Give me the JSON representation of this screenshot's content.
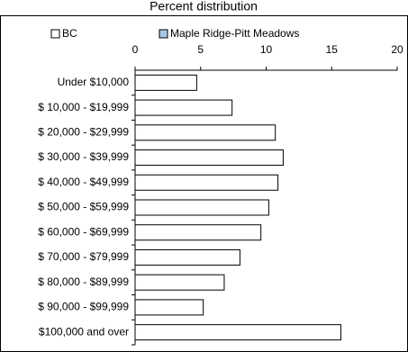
{
  "chart_data": {
    "type": "bar",
    "orientation": "horizontal",
    "title": "Percent distribution",
    "categories": [
      "Under $10,000",
      "$  10,000 - $19,999",
      "$  20,000 - $29,999",
      "$  30,000 - $39,999",
      "$  40,000 - $49,999",
      "$  50,000 - $59,999",
      "$  60,000 - $69,999",
      "$  70,000 - $79,999",
      "$  80,000 - $89,999",
      "$  90,000 - $99,999",
      "$100,000 and over"
    ],
    "series": [
      {
        "name": "BC",
        "color": "#ffffff",
        "values": [
          4.7,
          7.4,
          10.7,
          11.3,
          10.9,
          10.2,
          9.6,
          8.0,
          6.8,
          5.2,
          15.7
        ]
      },
      {
        "name": "Maple Ridge-Pitt Meadows",
        "color": "#a6c8e8",
        "values": [
          null,
          null,
          null,
          null,
          null,
          null,
          null,
          null,
          null,
          null,
          null
        ]
      }
    ],
    "xlim": [
      0,
      20
    ],
    "xticks": [
      0,
      5,
      10,
      15,
      20
    ]
  }
}
